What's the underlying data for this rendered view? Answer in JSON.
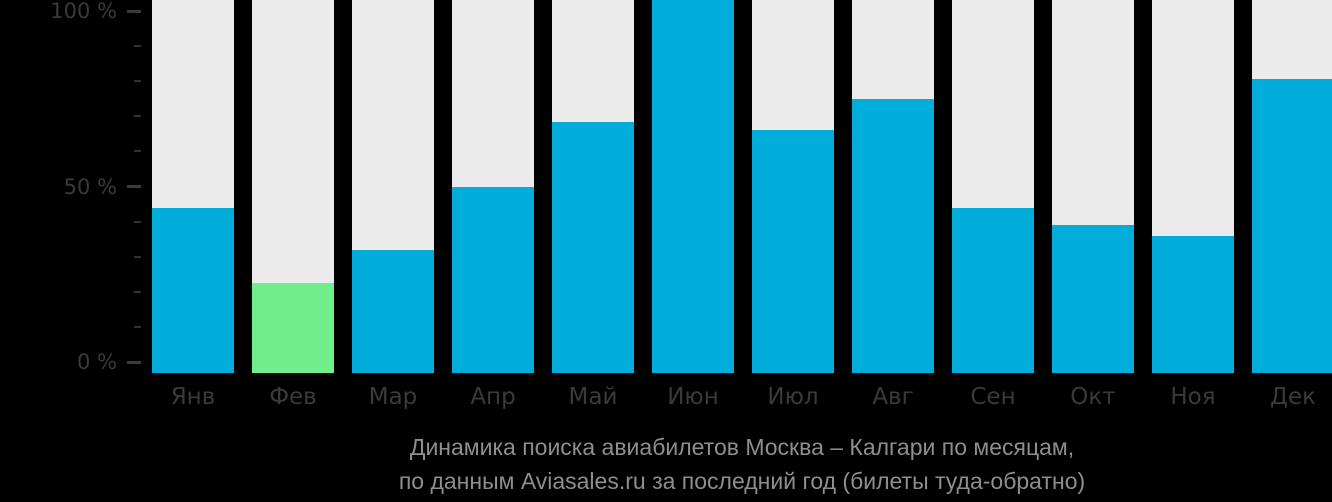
{
  "chart_data": {
    "type": "bar",
    "categories": [
      "Янв",
      "Фев",
      "Мар",
      "Апр",
      "Май",
      "Июн",
      "Июл",
      "Авг",
      "Сен",
      "Окт",
      "Ноя",
      "Дек"
    ],
    "values": [
      44,
      22.5,
      32,
      50,
      68.5,
      103,
      66,
      75,
      44,
      39,
      36,
      80.5
    ],
    "unit": "%",
    "bar_color": "#01aedb",
    "highlight_index": 1,
    "highlight_color": "#6fee8b",
    "track_color": "#ebebeb",
    "background": "#000000",
    "grid": false,
    "legend": false,
    "ylim": [
      0,
      100
    ],
    "y_ticks": [
      {
        "value": 0,
        "label": "0 %"
      },
      {
        "value": 50,
        "label": "50 %"
      },
      {
        "value": 100,
        "label": "100 %"
      }
    ],
    "title": "Динамика поиска авиабилетов Москва – Калгари по месяцам,",
    "subtitle": "по данным Aviasales.ru за последний год (билеты туда-обратно)"
  }
}
